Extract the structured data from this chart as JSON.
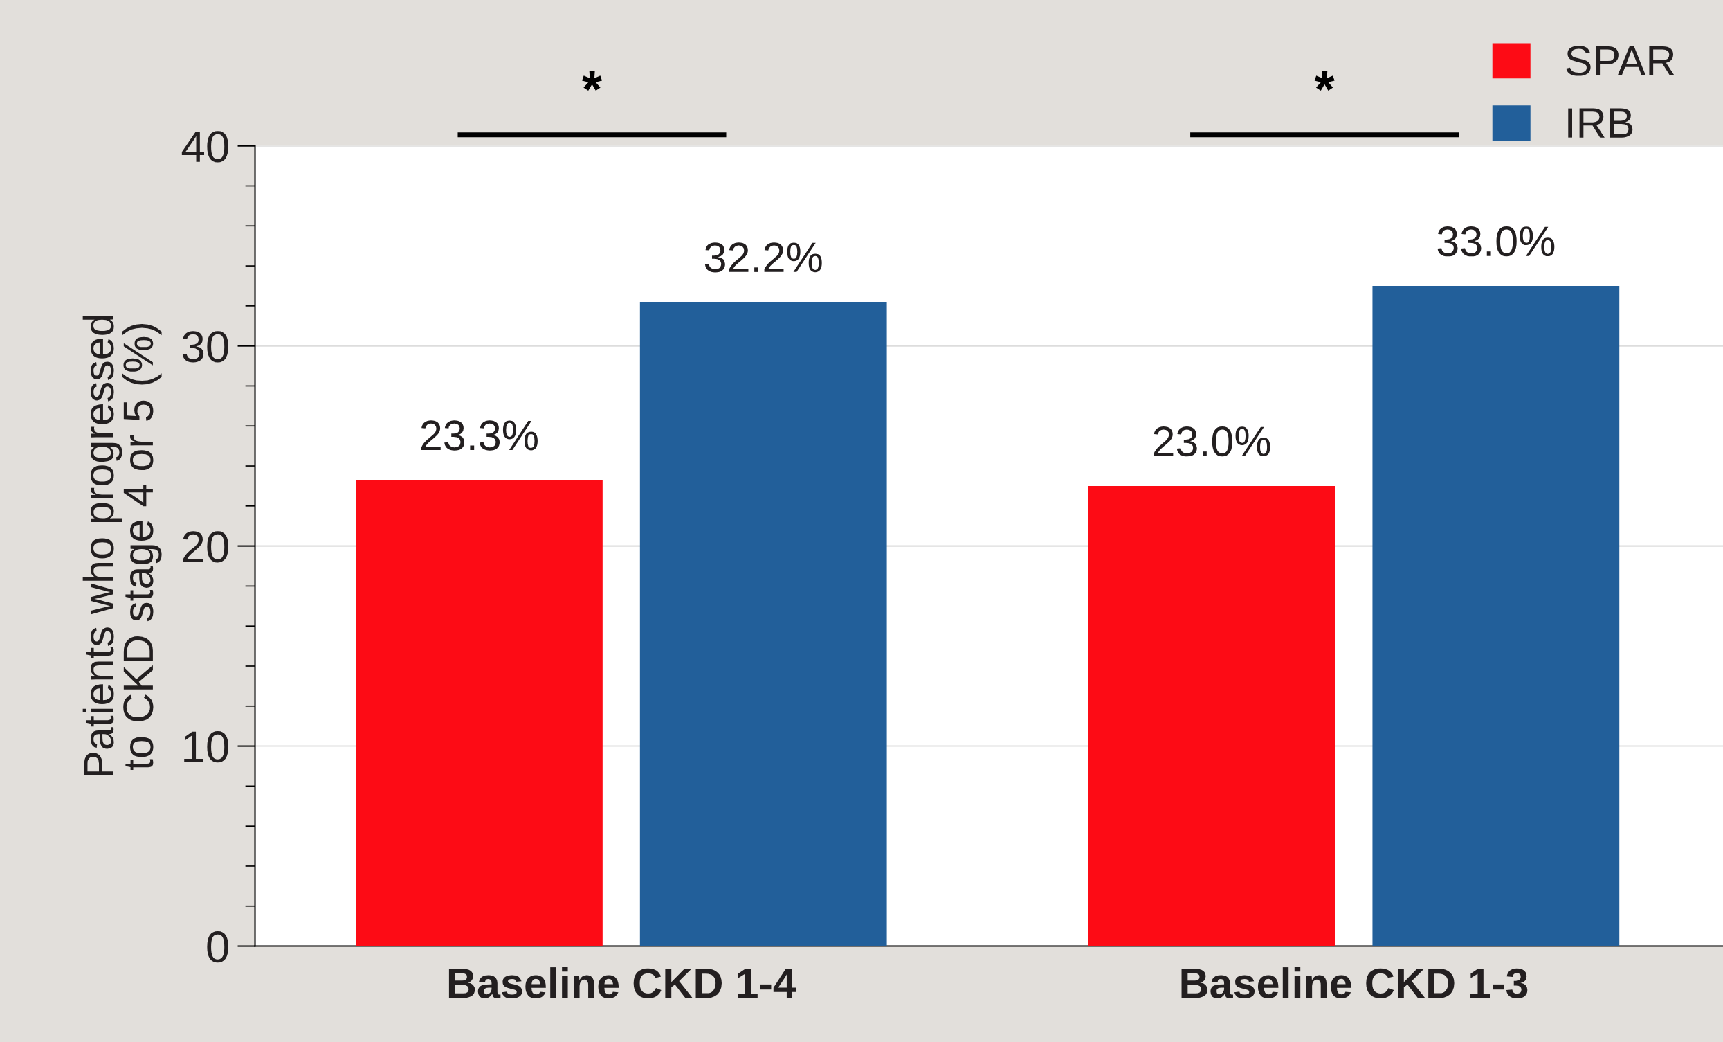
{
  "chart_data": {
    "type": "bar",
    "ylabel": "Patients who progressed\nto CKD stage 4 or 5 (%)",
    "categories": [
      "Baseline CKD 1-4",
      "Baseline CKD 1-3"
    ],
    "series": [
      {
        "name": "SPAR",
        "color": "#fd0b15",
        "values": [
          23.3,
          23.0
        ],
        "value_labels": [
          "23.3%",
          "23.0%"
        ]
      },
      {
        "name": "IRB",
        "color": "#225f9a",
        "values": [
          32.2,
          33.0
        ],
        "value_labels": [
          "32.2%",
          "33.0%"
        ]
      }
    ],
    "ylim": [
      0,
      40
    ],
    "yticks": [
      0,
      10,
      20,
      30,
      40
    ],
    "grid": "y",
    "legend": "top right",
    "annotations": [
      "*",
      "*"
    ]
  }
}
